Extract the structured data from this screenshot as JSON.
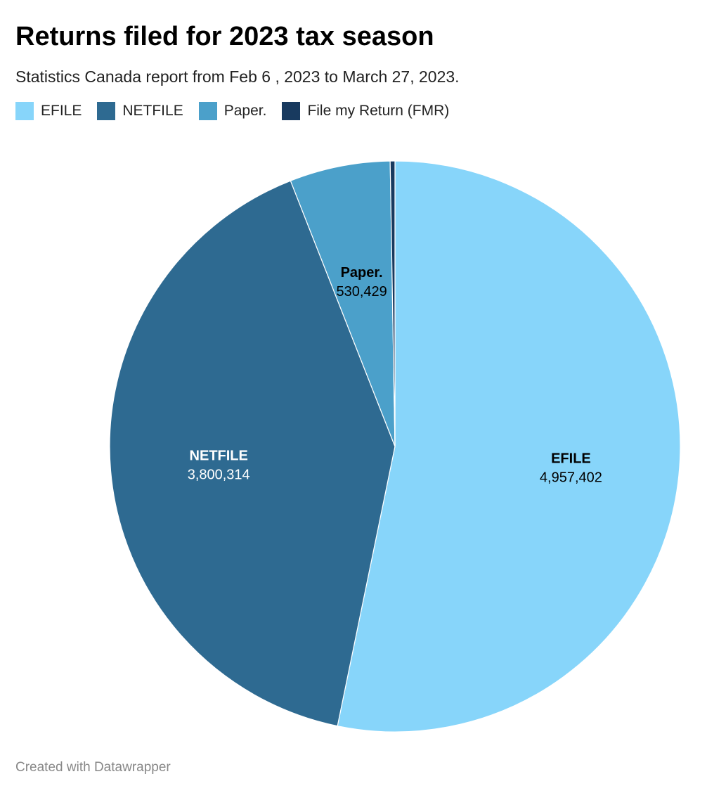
{
  "header": {
    "title": "Returns filed for 2023 tax season",
    "subtitle": "Statistics Canada report from Feb 6 , 2023 to March 27, 2023."
  },
  "legend": {
    "items": [
      {
        "label": "EFILE",
        "color": "#87d5fa"
      },
      {
        "label": "NETFILE",
        "color": "#2e6a91"
      },
      {
        "label": "Paper.",
        "color": "#4ba0ca"
      },
      {
        "label": "File my Return (FMR)",
        "color": "#183a5f"
      }
    ]
  },
  "chart_data": {
    "type": "pie",
    "slices": [
      {
        "label": "EFILE",
        "value": 4957402,
        "value_text": "4,957,402",
        "color": "#87d5fa",
        "label_color": "#000000"
      },
      {
        "label": "NETFILE",
        "value": 3800314,
        "value_text": "3,800,314",
        "color": "#2e6a91",
        "label_color": "#ffffff"
      },
      {
        "label": "Paper.",
        "value": 530429,
        "value_text": "530,429",
        "color": "#4ba0ca",
        "label_color": "#000000"
      },
      {
        "label": "File my Return (FMR)",
        "value": 25000,
        "value_text": "",
        "color": "#183a5f",
        "label_color": "#000000"
      }
    ]
  },
  "footer": {
    "credit": "Created with Datawrapper"
  }
}
